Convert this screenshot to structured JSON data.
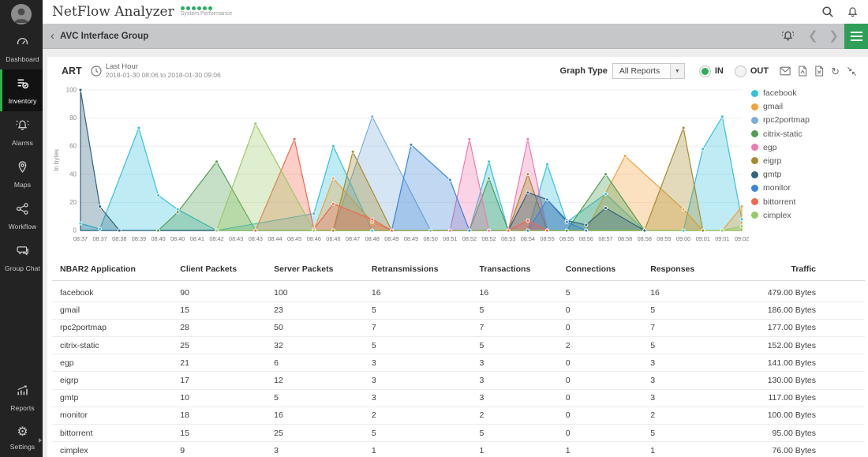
{
  "app": {
    "title": "NetFlow Analyzer",
    "subtitle": "System Performance",
    "status_dot_count": 6
  },
  "colors": {
    "accent_green": "#2f9e58",
    "status_dot_green": "#2eac66",
    "radio_selected_green": "#2eae5d",
    "sidebar_active_green": "#2db34a"
  },
  "breadcrumb": {
    "title": "AVC Interface Group"
  },
  "sidebar": {
    "items": [
      {
        "id": "dashboard",
        "label": "Dashboard",
        "icon": "dashboard-icon",
        "active": false
      },
      {
        "id": "inventory",
        "label": "Inventory",
        "icon": "inventory-icon",
        "active": true
      },
      {
        "id": "alarms",
        "label": "Alarms",
        "icon": "alarms-icon",
        "active": false
      },
      {
        "id": "maps",
        "label": "Maps",
        "icon": "maps-icon",
        "active": false
      },
      {
        "id": "workflow",
        "label": "Workflow",
        "icon": "workflow-icon",
        "active": false
      },
      {
        "id": "group-chat",
        "label": "Group Chat",
        "icon": "group-chat-icon",
        "active": false
      },
      {
        "id": "reports",
        "label": "Reports",
        "icon": "reports-icon",
        "active": false,
        "bottom": true
      },
      {
        "id": "settings",
        "label": "Settings",
        "icon": "settings-icon",
        "active": false,
        "flyout": true
      }
    ]
  },
  "panel": {
    "title": "ART",
    "time": {
      "label": "Last Hour",
      "range": "2018-01-30 08:06 to 2018-01-30 09:06"
    },
    "graph_type": {
      "label": "Graph Type",
      "value": "All Reports"
    },
    "direction_options": [
      {
        "label": "IN",
        "selected": true
      },
      {
        "label": "OUT",
        "selected": false
      }
    ],
    "action_icons": [
      "email-icon",
      "export-pdf-icon",
      "export-excel-icon",
      "refresh-icon",
      "collapse-icon"
    ]
  },
  "chart_data": {
    "type": "area",
    "x": [
      "08:37",
      "08:37",
      "08:38",
      "08:39",
      "08:40",
      "08:40",
      "08:41",
      "08:42",
      "08:43",
      "08:43",
      "08:44",
      "08:45",
      "08:46",
      "08:46",
      "08:47",
      "08:48",
      "08:49",
      "08:49",
      "08:50",
      "08:51",
      "08:52",
      "08:52",
      "08:53",
      "08:54",
      "08:55",
      "08:55",
      "08:56",
      "08:57",
      "08:58",
      "08:58",
      "08:59",
      "09:00",
      "09:01",
      "09:01",
      "09:02"
    ],
    "ylabel": "In bytes",
    "ylim": [
      0,
      100
    ],
    "yticks": [
      0,
      20,
      40,
      60,
      80,
      100
    ],
    "grid": "horizontal",
    "legend_position": "right",
    "series": [
      {
        "name": "facebook",
        "color": "#35c2dc",
        "points": [
          [
            0,
            5
          ],
          [
            1,
            1
          ],
          [
            3,
            73
          ],
          [
            4,
            25
          ],
          [
            5,
            15
          ],
          [
            7,
            0
          ],
          [
            12,
            12
          ],
          [
            13,
            60
          ],
          [
            15,
            0
          ],
          [
            20,
            0
          ],
          [
            21,
            49
          ],
          [
            22,
            0
          ],
          [
            23,
            0
          ],
          [
            24,
            47
          ],
          [
            25,
            6
          ],
          [
            27,
            26
          ],
          [
            29,
            0
          ],
          [
            31,
            0
          ],
          [
            32,
            58
          ],
          [
            33,
            81
          ],
          [
            34,
            8
          ]
        ]
      },
      {
        "name": "gmail",
        "color": "#f2a13c",
        "points": [
          [
            12,
            0
          ],
          [
            13,
            37
          ],
          [
            15,
            6
          ],
          [
            16,
            0
          ],
          [
            26,
            0
          ],
          [
            28,
            53
          ],
          [
            31,
            15
          ],
          [
            32,
            0
          ],
          [
            33,
            0
          ],
          [
            34,
            17
          ]
        ]
      },
      {
        "name": "rpc2portmap",
        "color": "#7baddd",
        "points": [
          [
            13,
            0
          ],
          [
            15,
            81
          ],
          [
            18,
            0
          ]
        ]
      },
      {
        "name": "citrix-static",
        "color": "#4f9e50",
        "points": [
          [
            4,
            0
          ],
          [
            5,
            13
          ],
          [
            7,
            49
          ],
          [
            9,
            0
          ],
          [
            20,
            0
          ],
          [
            21,
            37
          ],
          [
            22,
            0
          ],
          [
            25,
            0
          ],
          [
            27,
            40
          ],
          [
            29,
            0
          ]
        ]
      },
      {
        "name": "egp",
        "color": "#f07ab0",
        "points": [
          [
            19,
            0
          ],
          [
            20,
            65
          ],
          [
            21,
            0
          ],
          [
            22,
            0
          ],
          [
            23,
            65
          ],
          [
            24,
            0
          ]
        ]
      },
      {
        "name": "eigrp",
        "color": "#a68b2c",
        "points": [
          [
            13,
            0
          ],
          [
            14,
            56
          ],
          [
            16,
            0
          ],
          [
            22,
            0
          ],
          [
            23,
            40
          ],
          [
            24,
            0
          ],
          [
            29,
            0
          ],
          [
            31,
            73
          ],
          [
            32,
            0
          ]
        ]
      },
      {
        "name": "gmtp",
        "color": "#2f637f",
        "points": [
          [
            0,
            100
          ],
          [
            1,
            17
          ],
          [
            2,
            0
          ],
          [
            22,
            0
          ],
          [
            23,
            27
          ],
          [
            24,
            22
          ],
          [
            25,
            7
          ],
          [
            26,
            4
          ],
          [
            27,
            16
          ],
          [
            29,
            0
          ]
        ]
      },
      {
        "name": "monitor",
        "color": "#3a85d8",
        "points": [
          [
            16,
            0
          ],
          [
            17,
            61
          ],
          [
            19,
            36
          ],
          [
            20,
            0
          ],
          [
            23,
            0
          ],
          [
            24,
            22
          ],
          [
            25,
            6
          ],
          [
            26,
            0
          ]
        ]
      },
      {
        "name": "bittorrent",
        "color": "#f2674f",
        "points": [
          [
            9,
            0
          ],
          [
            11,
            65
          ],
          [
            12,
            1
          ],
          [
            13,
            19
          ],
          [
            15,
            8
          ],
          [
            16,
            0
          ],
          [
            22,
            0
          ],
          [
            23,
            7
          ],
          [
            24,
            0
          ]
        ]
      },
      {
        "name": "cimplex",
        "color": "#9bc968",
        "points": [
          [
            7,
            0
          ],
          [
            9,
            76
          ],
          [
            12,
            0
          ],
          [
            33,
            0
          ],
          [
            34,
            3
          ]
        ]
      }
    ]
  },
  "table": {
    "columns": [
      "NBAR2 Application",
      "Client Packets",
      "Server Packets",
      "Retransmissions",
      "Transactions",
      "Connections",
      "Responses",
      "Traffic"
    ],
    "rows": [
      [
        "facebook",
        "90",
        "100",
        "16",
        "16",
        "5",
        "16",
        "479.00 Bytes"
      ],
      [
        "gmail",
        "15",
        "23",
        "5",
        "5",
        "0",
        "5",
        "186.00 Bytes"
      ],
      [
        "rpc2portmap",
        "28",
        "50",
        "7",
        "7",
        "0",
        "7",
        "177.00 Bytes"
      ],
      [
        "citrix-static",
        "25",
        "32",
        "5",
        "5",
        "2",
        "5",
        "152.00 Bytes"
      ],
      [
        "egp",
        "21",
        "6",
        "3",
        "3",
        "0",
        "3",
        "141.00 Bytes"
      ],
      [
        "eigrp",
        "17",
        "12",
        "3",
        "3",
        "0",
        "3",
        "130.00 Bytes"
      ],
      [
        "gmtp",
        "10",
        "5",
        "3",
        "3",
        "0",
        "3",
        "117.00 Bytes"
      ],
      [
        "monitor",
        "18",
        "16",
        "2",
        "2",
        "0",
        "2",
        "100.00 Bytes"
      ],
      [
        "bittorrent",
        "15",
        "25",
        "5",
        "5",
        "0",
        "5",
        "95.00 Bytes"
      ],
      [
        "cimplex",
        "9",
        "3",
        "1",
        "1",
        "1",
        "1",
        "76.00 Bytes"
      ]
    ]
  }
}
